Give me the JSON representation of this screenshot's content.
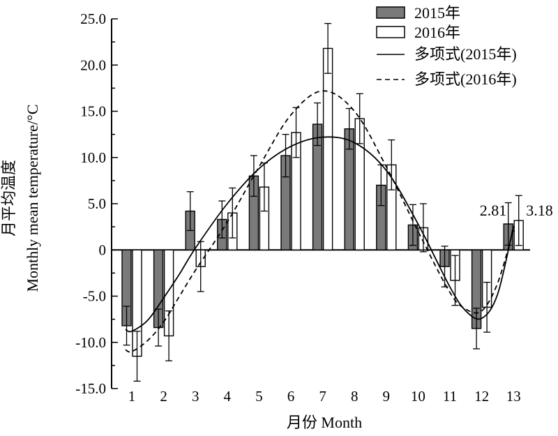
{
  "chart_data": {
    "type": "bar",
    "categories": [
      "1",
      "2",
      "3",
      "4",
      "5",
      "6",
      "7",
      "8",
      "9",
      "10",
      "11",
      "12",
      "13"
    ],
    "xlabel": "月份 Month",
    "ylabel_cn": "月平均温度",
    "ylabel_en": "Monthly mean temperature/°C",
    "ylim": [
      -15,
      25
    ],
    "yticks": [
      "-15.0",
      "-10.0",
      "-5.0",
      "0",
      "5.0",
      "10.0",
      "15.0",
      "20.0",
      "25.0"
    ],
    "series": [
      {
        "name": "2015年",
        "values": [
          -8.2,
          -8.4,
          4.2,
          3.3,
          8.0,
          10.2,
          13.6,
          13.1,
          7.0,
          2.7,
          -1.8,
          -8.5,
          2.81
        ],
        "errors": [
          2.1,
          2.0,
          2.1,
          2.0,
          2.2,
          2.3,
          2.3,
          2.2,
          2.2,
          2.2,
          2.2,
          2.2,
          2.3
        ],
        "color": "#7a7a7a"
      },
      {
        "name": "2016年",
        "values": [
          -11.5,
          -9.3,
          -1.8,
          4.0,
          6.8,
          12.7,
          21.8,
          14.2,
          9.2,
          2.4,
          -3.3,
          -6.2,
          3.18
        ],
        "errors": [
          2.7,
          2.7,
          2.7,
          2.7,
          2.6,
          2.7,
          2.7,
          2.7,
          2.7,
          2.6,
          2.7,
          2.7,
          2.7
        ],
        "color": "#ffffff"
      }
    ],
    "trendlines": [
      {
        "name": "多项式(2015年)",
        "style": "solid",
        "points": [
          [
            0.8,
            -8.6
          ],
          [
            1,
            -8.8
          ],
          [
            1.5,
            -7.6
          ],
          [
            2,
            -5.2
          ],
          [
            2.5,
            -2.6
          ],
          [
            3,
            0.2
          ],
          [
            4,
            5.0
          ],
          [
            5,
            8.8
          ],
          [
            6,
            11.2
          ],
          [
            7,
            12.2
          ],
          [
            8,
            11.6
          ],
          [
            9,
            8.6
          ],
          [
            10,
            2.8
          ],
          [
            11,
            -4.0
          ],
          [
            11.5,
            -6.6
          ],
          [
            12,
            -7.4
          ],
          [
            12.5,
            -4.8
          ],
          [
            13,
            2.6
          ]
        ]
      },
      {
        "name": "多项式(2016年)",
        "style": "dashed",
        "points": [
          [
            0.8,
            -10.8
          ],
          [
            1,
            -11.0
          ],
          [
            1.5,
            -9.8
          ],
          [
            2,
            -7.8
          ],
          [
            2.5,
            -5.0
          ],
          [
            3,
            -2.2
          ],
          [
            4,
            3.0
          ],
          [
            5,
            9.0
          ],
          [
            6,
            14.6
          ],
          [
            7,
            17.2
          ],
          [
            8,
            15.0
          ],
          [
            9,
            9.0
          ],
          [
            10,
            2.0
          ],
          [
            11,
            -4.6
          ],
          [
            11.5,
            -6.4
          ],
          [
            12,
            -6.6
          ],
          [
            12.5,
            -3.6
          ],
          [
            13,
            2.2
          ]
        ]
      }
    ],
    "annotations": [
      {
        "text": "2.81",
        "category": "13"
      },
      {
        "text": "3.18",
        "category": "13"
      }
    ],
    "legend": "top-right"
  }
}
